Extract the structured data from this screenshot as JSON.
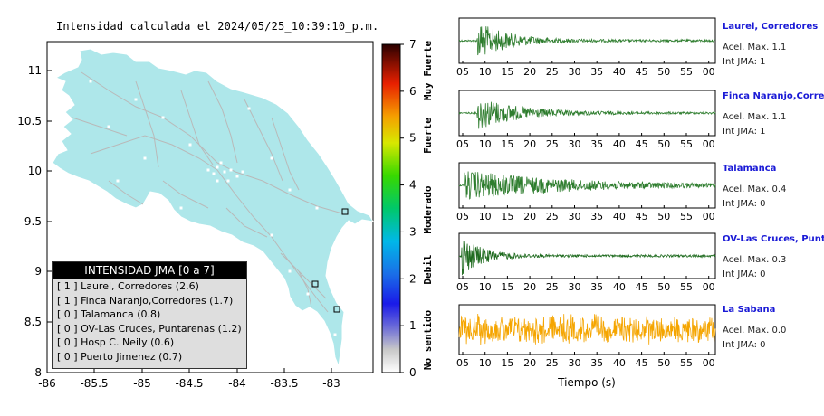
{
  "title": "Intensidad calculada el 2024/05/25_10:39:10_p.m.",
  "map": {
    "x_ticks": [
      "-86",
      "-85.5",
      "-85",
      "-84.5",
      "-84",
      "-83.5",
      "-83"
    ],
    "y_ticks": [
      "11",
      "10.5",
      "10",
      "9.5",
      "9",
      "8.5",
      "8"
    ],
    "land_color": "#aee7ea"
  },
  "colorbar": {
    "ticks": [
      "0",
      "1",
      "2",
      "3",
      "4",
      "5",
      "6",
      "7"
    ],
    "labels": [
      "No sentido",
      "Debil",
      "Moderado",
      "Fuerte",
      "Muy Fuerte"
    ]
  },
  "legend": {
    "header": "INTENSIDAD JMA [0 a 7]",
    "rows": [
      "[ 1 ]  Laurel, Corredores (2.6)",
      "[ 1 ]  Finca Naranjo,Corredores (1.7)",
      "[ 0 ]  Talamanca (0.8)",
      "[ 0 ]  OV-Las Cruces, Puntarenas (1.2)",
      "[ 0 ]  Hosp C. Neily (0.6)",
      "[ 0 ]  Puerto Jimenez (0.7)"
    ]
  },
  "stations": [
    {
      "name": "Laurel, Corredores",
      "acel": "Acel. Max. 1.1",
      "int": "Int JMA: 1",
      "color": "#2e7d2e"
    },
    {
      "name": "Finca Naranjo,Corredores",
      "acel": "Acel. Max. 1.1",
      "int": "Int JMA: 1",
      "color": "#2e7d2e"
    },
    {
      "name": "Talamanca",
      "acel": "Acel. Max. 0.4",
      "int": "Int JMA: 0",
      "color": "#2e7d2e"
    },
    {
      "name": "OV-Las Cruces, Puntarenas",
      "acel": "Acel. Max. 0.3",
      "int": "Int JMA: 0",
      "color": "#1f6b1f"
    },
    {
      "name": "La Sabana",
      "acel": "Acel. Max. 0.0",
      "int": "Int JMA: 0",
      "color": "#f5a500"
    }
  ],
  "time_ticks_a": [
    "05",
    "10",
    "15",
    "20",
    "25",
    "30",
    "35",
    "40",
    "45",
    "50",
    "55",
    "00"
  ],
  "time_ticks_b": [
    "05",
    "10",
    "15",
    "20",
    "25",
    "30",
    "35",
    "40",
    "45",
    "50",
    "55",
    "00"
  ],
  "time_ticks_c": [
    "05",
    "10",
    "15",
    "20",
    "25",
    "30",
    "35",
    "40",
    "45",
    "50",
    "55",
    "00"
  ],
  "time_ticks_d": [
    "05",
    "10",
    "15",
    "20",
    "25",
    "30",
    "35",
    "40",
    "45",
    "50",
    "55",
    "00"
  ],
  "time_ticks_e": [
    "05",
    "10",
    "15",
    "20",
    "25",
    "30",
    "35",
    "40",
    "45",
    "50",
    "55",
    "00"
  ],
  "xlabel": "Tiempo (s)",
  "chart_data": [
    {
      "type": "heatmap",
      "title": "Intensidad calculada el 2024/05/25_10:39:10_p.m.",
      "xlim": [
        -86,
        -82.5
      ],
      "ylim": [
        8,
        11.3
      ],
      "colorbar_range": [
        0,
        7
      ],
      "colorbar_labels": [
        "No sentido",
        "Debil",
        "Moderado",
        "Fuerte",
        "Muy Fuerte"
      ],
      "legend": [
        {
          "station": "Laurel, Corredores",
          "jma": 1,
          "value": 2.6
        },
        {
          "station": "Finca Naranjo,Corredores",
          "jma": 1,
          "value": 1.7
        },
        {
          "station": "Talamanca",
          "jma": 0,
          "value": 0.8
        },
        {
          "station": "OV-Las Cruces, Puntarenas",
          "jma": 0,
          "value": 1.2
        },
        {
          "station": "Hosp C. Neily",
          "jma": 0,
          "value": 0.6
        },
        {
          "station": "Puerto Jimenez",
          "jma": 0,
          "value": 0.7
        }
      ]
    },
    {
      "type": "line",
      "xlabel": "Tiempo (s)",
      "series": [
        {
          "name": "Laurel, Corredores",
          "acel_max": 1.1,
          "int_jma": 1
        },
        {
          "name": "Finca Naranjo,Corredores",
          "acel_max": 1.1,
          "int_jma": 1
        },
        {
          "name": "Talamanca",
          "acel_max": 0.4,
          "int_jma": 0
        },
        {
          "name": "OV-Las Cruces, Puntarenas",
          "acel_max": 0.3,
          "int_jma": 0
        },
        {
          "name": "La Sabana",
          "acel_max": 0.0,
          "int_jma": 0
        }
      ]
    }
  ]
}
